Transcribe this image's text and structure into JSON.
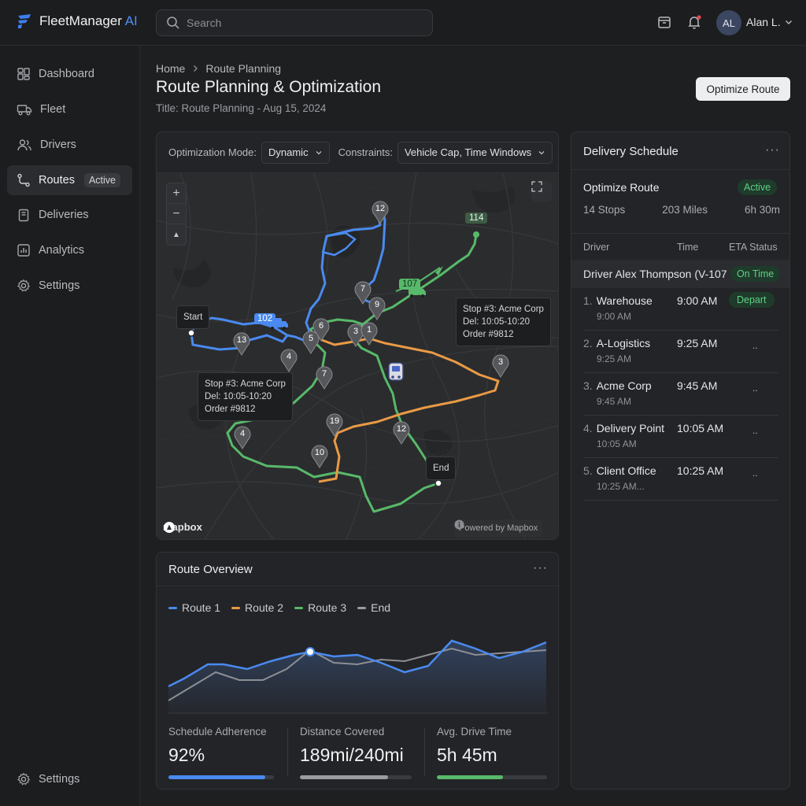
{
  "app": {
    "brand_main": "FleetManager",
    "brand_ai": "AI",
    "search_placeholder": "Search",
    "user_initials": "AL",
    "user_name": "Alan L."
  },
  "sidebar": {
    "items": [
      {
        "label": "Dashboard",
        "icon": "grid-icon"
      },
      {
        "label": "Fleet",
        "icon": "truck-icon"
      },
      {
        "label": "Drivers",
        "icon": "users-icon"
      },
      {
        "label": "Routes",
        "icon": "route-icon",
        "badge": "Active"
      },
      {
        "label": "Deliveries",
        "icon": "clipboard-icon"
      },
      {
        "label": "Analytics",
        "icon": "chart-icon"
      },
      {
        "label": "Settings",
        "icon": "gear-icon"
      }
    ],
    "bottom_settings": "Settings"
  },
  "page": {
    "crumb_home": "Home",
    "crumb_current": "Route Planning",
    "title": "Route Planning & Optimization",
    "subtitle": "Title: Route Planning - Aug 15, 2024",
    "optimize_button": "Optimize Route"
  },
  "map": {
    "mode_label": "Optimization Mode:",
    "mode_value": "Dynamic",
    "constraints_label": "Constraints:",
    "constraints_value": "Vehicle Cap, Time Windows",
    "start_label": "Start",
    "end_label": "End",
    "vehicle_blue": "102",
    "vehicle_green": "107",
    "vehicle_green_marker": "114",
    "tooltip_right": {
      "l1": "Stop #3: Acme Corp",
      "l2": "Del: 10:05-10:20",
      "l3": "Order #9812"
    },
    "tooltip_left": {
      "l1": "Stop #3: Acme Corp",
      "l2": "Del: 10:05-10:20",
      "l3": "Order #9812"
    },
    "pins": [
      "12",
      "7",
      "9",
      "6",
      "5",
      "3",
      "1",
      "13",
      "4",
      "7",
      "3",
      "19",
      "12",
      "4",
      "10"
    ],
    "logo": "mapbox",
    "credit": "Powered by Mapbox",
    "colors": {
      "route1": "#4a8af0",
      "route2": "#e99a45",
      "route3": "#58b96a"
    }
  },
  "overview": {
    "title": "Route Overview",
    "legend": [
      "Route 1",
      "Route 2",
      "Route 3",
      "End"
    ],
    "metrics": [
      {
        "label": "Schedule Adherence",
        "value": "92%",
        "fill": 0.92,
        "color": "#4a8af0"
      },
      {
        "label": "Distance Covered",
        "value": "189mi/240mi",
        "fill": 0.79,
        "color": "#9a9ca0"
      },
      {
        "label": "Avg. Drive Time",
        "value": "5h 45m",
        "fill": 0.6,
        "color": "#58b96a"
      }
    ]
  },
  "schedule": {
    "title": "Delivery Schedule",
    "route_label": "Optimize Route",
    "route_status": "Active",
    "stops_count": "14 Stops",
    "miles": "203 Miles",
    "duration": "6h 30m",
    "col_driver": "Driver",
    "col_time": "Time",
    "col_eta": "ETA Status",
    "driver": "Driver Alex Thompson (V-107",
    "driver_status": "On Time",
    "stops": [
      {
        "num": "1.",
        "name": "Warehouse",
        "sub": "9:00 AM",
        "time": "9:00 AM",
        "status": "Depart"
      },
      {
        "num": "2.",
        "name": "A-Logistics",
        "sub": "9:25 AM",
        "time": "9:25 AM",
        "status": ".."
      },
      {
        "num": "3.",
        "name": "Acme Corp",
        "sub": "9:45 AM",
        "time": "9:45 AM",
        "status": ".."
      },
      {
        "num": "4.",
        "name": "Delivery Point",
        "sub": "10:05 AM",
        "time": "10:05 AM",
        "status": ".."
      },
      {
        "num": "5.",
        "name": "Client Office",
        "sub": "10:25 AM...",
        "time": "10:25 AM",
        "status": ".."
      }
    ]
  }
}
